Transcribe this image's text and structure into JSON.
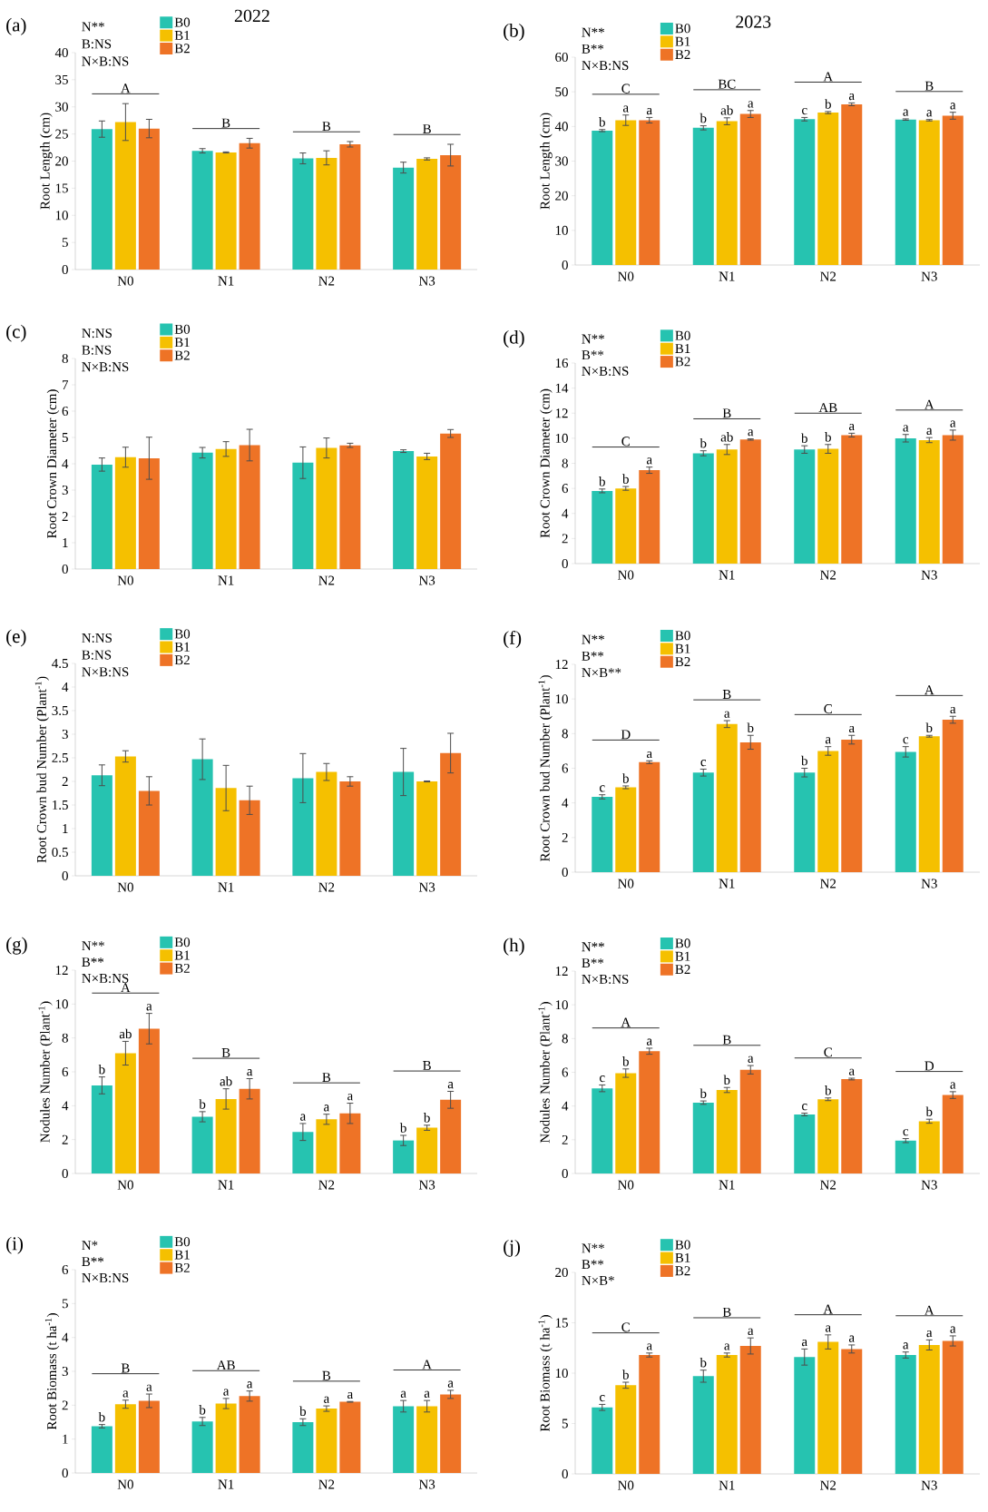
{
  "chart_data": [
    {
      "type": "bar",
      "title": "(a)",
      "subtitle": "2022",
      "ylabel": "Root Length (cm)",
      "categories": [
        "N0",
        "N1",
        "N2",
        "N3"
      ],
      "series": [
        {
          "name": "B0",
          "color": "#26c3b0",
          "values": [
            25.9,
            21.9,
            20.5,
            18.8
          ],
          "errors": [
            1.5,
            0.4,
            1.0,
            1.0
          ]
        },
        {
          "name": "B1",
          "color": "#f5c000",
          "values": [
            27.2,
            21.6,
            20.6,
            20.4
          ],
          "errors": [
            3.4,
            0.1,
            1.3,
            0.2
          ]
        },
        {
          "name": "B2",
          "color": "#ee7326",
          "values": [
            26.0,
            23.3,
            23.1,
            21.1
          ],
          "errors": [
            1.7,
            0.9,
            0.5,
            2.0
          ]
        }
      ],
      "ylim": [
        0,
        40
      ],
      "yticks": [
        0,
        5,
        10,
        15,
        20,
        25,
        30,
        35,
        40
      ],
      "legend": "top left",
      "annotations": [
        "N**",
        "B:NS",
        "N×B:NS",
        "A",
        "B",
        "B",
        "B"
      ]
    },
    {
      "type": "bar",
      "title": "(b)",
      "subtitle": "2023",
      "ylabel": "Root Length (cm)",
      "categories": [
        "N0",
        "N1",
        "N2",
        "N3"
      ],
      "series": [
        {
          "name": "B0",
          "color": "#26c3b0",
          "values": [
            38.8,
            39.6,
            42.1,
            42.0
          ],
          "errors": [
            0.3,
            0.6,
            0.5,
            0.2
          ],
          "value_labels": [
            "b",
            "b",
            "c",
            "a"
          ]
        },
        {
          "name": "B1",
          "color": "#f5c000",
          "values": [
            41.8,
            41.5,
            44.0,
            41.8
          ],
          "errors": [
            1.5,
            1.0,
            0.3,
            0.2
          ],
          "value_labels": [
            "a",
            "ab",
            "b",
            "a"
          ]
        },
        {
          "name": "B2",
          "color": "#ee7326",
          "values": [
            41.8,
            43.6,
            46.4,
            43.1
          ],
          "errors": [
            0.8,
            1.0,
            0.4,
            1.0
          ],
          "value_labels": [
            "a",
            "a",
            "a",
            "a"
          ]
        }
      ],
      "ylim": [
        0,
        60
      ],
      "yticks": [
        0,
        10,
        20,
        30,
        40,
        50,
        60
      ],
      "legend": "top left",
      "annotations": [
        "N**",
        "B**",
        "N×B:NS",
        "C",
        "BC",
        "A",
        "B"
      ]
    },
    {
      "type": "bar",
      "title": "(c)",
      "ylabel": "Root Crown Diameter (cm)",
      "categories": [
        "N0",
        "N1",
        "N2",
        "N3"
      ],
      "series": [
        {
          "name": "B0",
          "color": "#26c3b0",
          "values": [
            3.97,
            4.42,
            4.04,
            4.48
          ],
          "errors": [
            0.25,
            0.2,
            0.6,
            0.05
          ]
        },
        {
          "name": "B1",
          "color": "#f5c000",
          "values": [
            4.25,
            4.56,
            4.6,
            4.28
          ],
          "errors": [
            0.38,
            0.28,
            0.38,
            0.12
          ]
        },
        {
          "name": "B2",
          "color": "#ee7326",
          "values": [
            4.21,
            4.71,
            4.7,
            5.15
          ],
          "errors": [
            0.8,
            0.6,
            0.08,
            0.15
          ]
        }
      ],
      "ylim": [
        0,
        8
      ],
      "yticks": [
        0,
        1,
        2,
        3,
        4,
        5,
        6,
        7,
        8
      ],
      "legend": "top left",
      "annotations": [
        "N:NS",
        "B:NS",
        "N×B:NS"
      ]
    },
    {
      "type": "bar",
      "title": "(d)",
      "ylabel": "Root Crown Diameter (cm)",
      "categories": [
        "N0",
        "N1",
        "N2",
        "N3"
      ],
      "series": [
        {
          "name": "B0",
          "color": "#26c3b0",
          "values": [
            5.8,
            8.8,
            9.1,
            10.0
          ],
          "errors": [
            0.15,
            0.2,
            0.3,
            0.3
          ],
          "value_labels": [
            "b",
            "b",
            "b",
            "a"
          ]
        },
        {
          "name": "B1",
          "color": "#f5c000",
          "values": [
            6.0,
            9.1,
            9.15,
            9.85
          ],
          "errors": [
            0.15,
            0.4,
            0.35,
            0.2
          ],
          "value_labels": [
            "b",
            "ab",
            "b",
            "a"
          ]
        },
        {
          "name": "B2",
          "color": "#ee7326",
          "values": [
            7.45,
            9.9,
            10.25,
            10.25
          ],
          "errors": [
            0.25,
            0.05,
            0.15,
            0.4
          ],
          "value_labels": [
            "a",
            "a",
            "a",
            "a"
          ]
        }
      ],
      "ylim": [
        0,
        16
      ],
      "yticks": [
        0,
        2,
        4,
        6,
        8,
        10,
        12,
        14,
        16
      ],
      "legend": "top left",
      "annotations": [
        "N**",
        "B**",
        "N×B:NS",
        "C",
        "B",
        "AB",
        "A"
      ]
    },
    {
      "type": "bar",
      "title": "(e)",
      "ylabel": "Root Crown bud Number (Plant$^{-1}$)",
      "categories": [
        "N0",
        "N1",
        "N2",
        "N3"
      ],
      "series": [
        {
          "name": "B0",
          "color": "#26c3b0",
          "values": [
            2.13,
            2.47,
            2.07,
            2.2
          ],
          "errors": [
            0.22,
            0.43,
            0.52,
            0.5
          ]
        },
        {
          "name": "B1",
          "color": "#f5c000",
          "values": [
            2.53,
            1.86,
            2.2,
            2.0
          ],
          "errors": [
            0.12,
            0.48,
            0.18,
            0.01
          ]
        },
        {
          "name": "B2",
          "color": "#ee7326",
          "values": [
            1.8,
            1.6,
            2.0,
            2.6
          ],
          "errors": [
            0.3,
            0.3,
            0.1,
            0.42
          ]
        }
      ],
      "ylim": [
        0,
        4.5
      ],
      "yticks": [
        0,
        0.5,
        1,
        1.5,
        2,
        2.5,
        3,
        3.5,
        4,
        4.5
      ],
      "legend": "top left",
      "annotations": [
        "N:NS",
        "B:NS",
        "N×B:NS"
      ]
    },
    {
      "type": "bar",
      "title": "(f)",
      "ylabel": "Root Crown bud Number (Plant$^{-1}$)",
      "categories": [
        "N0",
        "N1",
        "N2",
        "N3"
      ],
      "series": [
        {
          "name": "B0",
          "color": "#26c3b0",
          "values": [
            4.35,
            5.75,
            5.75,
            6.95
          ],
          "errors": [
            0.12,
            0.2,
            0.25,
            0.3
          ],
          "value_labels": [
            "c",
            "c",
            "b",
            "c"
          ]
        },
        {
          "name": "B1",
          "color": "#f5c000",
          "values": [
            4.9,
            8.55,
            7.0,
            7.85
          ],
          "errors": [
            0.08,
            0.2,
            0.25,
            0.05
          ],
          "value_labels": [
            "b",
            "a",
            "a",
            "b"
          ]
        },
        {
          "name": "B2",
          "color": "#ee7326",
          "values": [
            6.35,
            7.5,
            7.65,
            8.8
          ],
          "errors": [
            0.08,
            0.4,
            0.25,
            0.2
          ],
          "value_labels": [
            "a",
            "b",
            "a",
            "a"
          ]
        }
      ],
      "ylim": [
        0,
        12
      ],
      "yticks": [
        0,
        2,
        4,
        6,
        8,
        10,
        12
      ],
      "legend": "top left",
      "annotations": [
        "N**",
        "B**",
        "N×B**",
        "D",
        "B",
        "C",
        "A"
      ]
    },
    {
      "type": "bar",
      "title": "(g)",
      "ylabel": "Nodules Number (Plant$^{-1}$)",
      "categories": [
        "N0",
        "N1",
        "N2",
        "N3"
      ],
      "series": [
        {
          "name": "B0",
          "color": "#26c3b0",
          "values": [
            5.2,
            3.35,
            2.45,
            1.95
          ],
          "errors": [
            0.5,
            0.3,
            0.5,
            0.3
          ],
          "value_labels": [
            "b",
            "b",
            "a",
            "b"
          ]
        },
        {
          "name": "B1",
          "color": "#f5c000",
          "values": [
            7.1,
            4.4,
            3.2,
            2.7
          ],
          "errors": [
            0.7,
            0.6,
            0.3,
            0.15
          ],
          "value_labels": [
            "ab",
            "ab",
            "a",
            "b"
          ]
        },
        {
          "name": "B2",
          "color": "#ee7326",
          "values": [
            8.55,
            5.0,
            3.55,
            4.35
          ],
          "errors": [
            0.9,
            0.6,
            0.6,
            0.5
          ],
          "value_labels": [
            "a",
            "a",
            "a",
            "a"
          ]
        }
      ],
      "ylim": [
        0,
        12
      ],
      "yticks": [
        0,
        2,
        4,
        6,
        8,
        10,
        12
      ],
      "legend": "top left",
      "annotations": [
        "N**",
        "B**",
        "N×B:NS",
        "A",
        "B",
        "B",
        "B"
      ]
    },
    {
      "type": "bar",
      "title": "(h)",
      "ylabel": "Nodules Number (Plant$^{-1}$)",
      "categories": [
        "N0",
        "N1",
        "N2",
        "N3"
      ],
      "series": [
        {
          "name": "B0",
          "color": "#26c3b0",
          "values": [
            5.05,
            4.2,
            3.5,
            1.95
          ],
          "errors": [
            0.2,
            0.1,
            0.08,
            0.12
          ],
          "value_labels": [
            "c",
            "b",
            "c",
            "c"
          ]
        },
        {
          "name": "B1",
          "color": "#f5c000",
          "values": [
            5.95,
            4.95,
            4.4,
            3.1
          ],
          "errors": [
            0.25,
            0.15,
            0.08,
            0.12
          ],
          "value_labels": [
            "b",
            "b",
            "b",
            "b"
          ]
        },
        {
          "name": "B2",
          "color": "#ee7326",
          "values": [
            7.25,
            6.15,
            5.6,
            4.65
          ],
          "errors": [
            0.18,
            0.25,
            0.05,
            0.2
          ],
          "value_labels": [
            "a",
            "a",
            "a",
            "a"
          ]
        }
      ],
      "ylim": [
        0,
        12
      ],
      "yticks": [
        0,
        2,
        4,
        6,
        8,
        10,
        12
      ],
      "legend": "top left",
      "annotations": [
        "N**",
        "B**",
        "N×B:NS",
        "A",
        "B",
        "C",
        "D"
      ]
    },
    {
      "type": "bar",
      "title": "(i)",
      "ylabel": "Root Biomass (t ha$^{-1}$)",
      "categories": [
        "N0",
        "N1",
        "N2",
        "N3"
      ],
      "series": [
        {
          "name": "B0",
          "color": "#26c3b0",
          "values": [
            1.38,
            1.52,
            1.5,
            1.97
          ],
          "errors": [
            0.05,
            0.12,
            0.1,
            0.17
          ],
          "value_labels": [
            "b",
            "b",
            "b",
            "a"
          ]
        },
        {
          "name": "B1",
          "color": "#f5c000",
          "values": [
            2.03,
            2.05,
            1.9,
            1.97
          ],
          "errors": [
            0.12,
            0.15,
            0.08,
            0.17
          ],
          "value_labels": [
            "a",
            "a",
            "a",
            "a"
          ]
        },
        {
          "name": "B2",
          "color": "#ee7326",
          "values": [
            2.13,
            2.27,
            2.1,
            2.32
          ],
          "errors": [
            0.2,
            0.15,
            0.01,
            0.12
          ],
          "value_labels": [
            "a",
            "a",
            "a",
            "a"
          ]
        }
      ],
      "ylim": [
        0,
        6
      ],
      "yticks": [
        0,
        1,
        2,
        3,
        4,
        5,
        6
      ],
      "legend": "top left",
      "annotations": [
        "N*",
        "B**",
        "N×B:NS",
        "B",
        "AB",
        "B",
        "A"
      ]
    },
    {
      "type": "bar",
      "title": "(j)",
      "ylabel": "Root Biomass (t ha$^{-1}$)",
      "categories": [
        "N0",
        "N1",
        "N2",
        "N3"
      ],
      "series": [
        {
          "name": "B0",
          "color": "#26c3b0",
          "values": [
            6.6,
            9.7,
            11.6,
            11.8
          ],
          "errors": [
            0.3,
            0.6,
            0.8,
            0.3
          ],
          "value_labels": [
            "c",
            "b",
            "a",
            "a"
          ]
        },
        {
          "name": "B1",
          "color": "#f5c000",
          "values": [
            8.8,
            11.8,
            13.1,
            12.8
          ],
          "errors": [
            0.3,
            0.2,
            0.7,
            0.5
          ],
          "value_labels": [
            "b",
            "a",
            "a",
            "a"
          ]
        },
        {
          "name": "B2",
          "color": "#ee7326",
          "values": [
            11.8,
            12.7,
            12.4,
            13.2
          ],
          "errors": [
            0.2,
            0.8,
            0.4,
            0.5
          ],
          "value_labels": [
            "a",
            "a",
            "a",
            "a"
          ]
        }
      ],
      "ylim": [
        0,
        20
      ],
      "yticks": [
        0,
        5,
        10,
        15,
        20
      ],
      "legend": "top left",
      "annotations": [
        "N**",
        "B**",
        "N×B*",
        "C",
        "B",
        "A",
        "A"
      ]
    }
  ]
}
